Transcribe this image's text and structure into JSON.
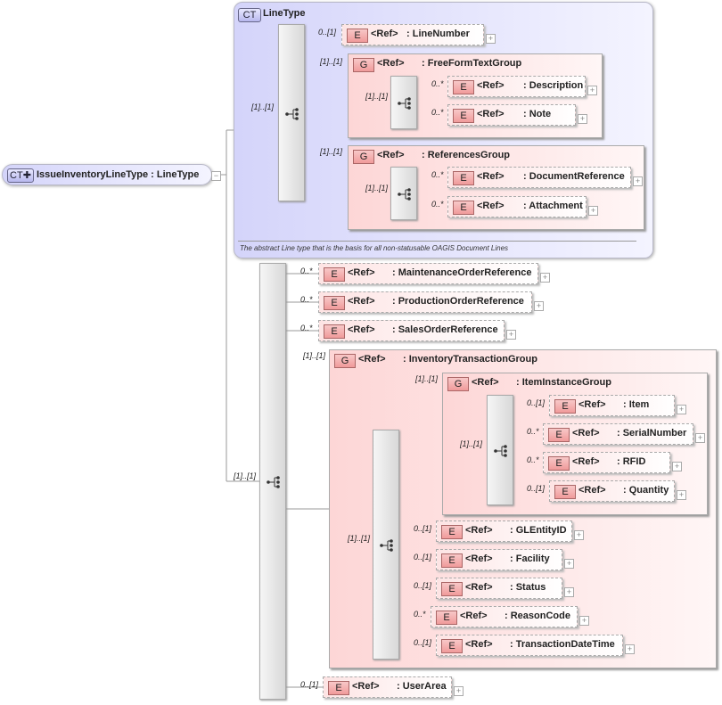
{
  "root": {
    "badge": "CT",
    "name": "IssueInventoryLineType",
    "type": ": LineType"
  },
  "linetype": {
    "badge": "CT",
    "title": "LineType",
    "description": "The abstract Line type that is the basis for all non-statusable OAGIS Document Lines"
  },
  "groups": [
    {
      "badge": "G",
      "ref": "<Ref>",
      "name": ": FreeFormTextGroup",
      "card": "[1]..[1]"
    },
    {
      "badge": "G",
      "ref": "<Ref>",
      "name": ": ReferencesGroup",
      "card": "[1]..[1]"
    },
    {
      "badge": "G",
      "ref": "<Ref>",
      "name": ": InventoryTransactionGroup",
      "card": "[1]..[1]"
    },
    {
      "badge": "G",
      "ref": "<Ref>",
      "name": ": ItemInstanceGroup",
      "card": "[1]..[1]"
    }
  ],
  "sequences": [
    {
      "card": "[1]..[1]"
    },
    {
      "card": "[1]..[1]"
    },
    {
      "card": "[1]..[1]"
    },
    {
      "card": "[1]..[1]"
    },
    {
      "card": "[1]..[1]"
    },
    {
      "card": "[1]..[1]"
    }
  ],
  "elements": [
    {
      "badge": "E",
      "ref": "<Ref>",
      "name": ": LineNumber",
      "card": "0..[1]"
    },
    {
      "badge": "E",
      "ref": "<Ref>",
      "name": ": Description",
      "card": "0..*"
    },
    {
      "badge": "E",
      "ref": "<Ref>",
      "name": ": Note",
      "card": "0..*"
    },
    {
      "badge": "E",
      "ref": "<Ref>",
      "name": ": DocumentReference",
      "card": "0..*"
    },
    {
      "badge": "E",
      "ref": "<Ref>",
      "name": ": Attachment",
      "card": "0..*"
    },
    {
      "badge": "E",
      "ref": "<Ref>",
      "name": ": MaintenanceOrderReference",
      "card": "0..*"
    },
    {
      "badge": "E",
      "ref": "<Ref>",
      "name": ": ProductionOrderReference",
      "card": "0..*"
    },
    {
      "badge": "E",
      "ref": "<Ref>",
      "name": ": SalesOrderReference",
      "card": "0..*"
    },
    {
      "badge": "E",
      "ref": "<Ref>",
      "name": ": Item",
      "card": "0..[1]"
    },
    {
      "badge": "E",
      "ref": "<Ref>",
      "name": ": SerialNumber",
      "card": "0..*"
    },
    {
      "badge": "E",
      "ref": "<Ref>",
      "name": ": RFID",
      "card": "0..*"
    },
    {
      "badge": "E",
      "ref": "<Ref>",
      "name": ": Quantity",
      "card": "0..[1]"
    },
    {
      "badge": "E",
      "ref": "<Ref>",
      "name": ": GLEntityID",
      "card": "0..[1]"
    },
    {
      "badge": "E",
      "ref": "<Ref>",
      "name": ": Facility",
      "card": "0..[1]"
    },
    {
      "badge": "E",
      "ref": "<Ref>",
      "name": ": Status",
      "card": "0..[1]"
    },
    {
      "badge": "E",
      "ref": "<Ref>",
      "name": ": ReasonCode",
      "card": "0..*"
    },
    {
      "badge": "E",
      "ref": "<Ref>",
      "name": ": TransactionDateTime",
      "card": "0..[1]"
    },
    {
      "badge": "E",
      "ref": "<Ref>",
      "name": ": UserArea",
      "card": "0..[1]"
    }
  ]
}
